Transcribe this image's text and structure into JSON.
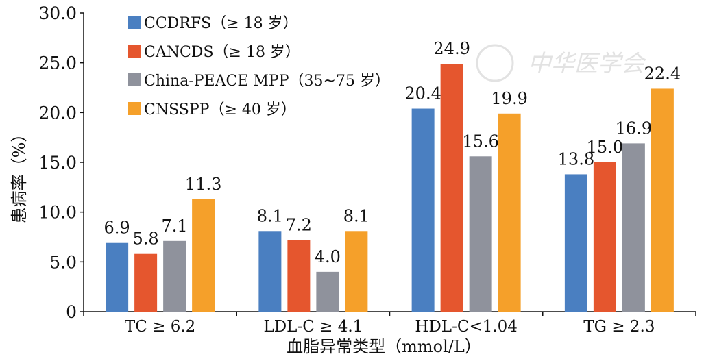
{
  "chart_data": {
    "type": "bar",
    "categories": [
      "TC ≥ 6.2",
      "LDL-C ≥ 4.1",
      "HDL-C<1.04",
      "TG ≥ 2.3"
    ],
    "series": [
      {
        "name": "CCDRFS（≥ 18 岁）",
        "color": "#4a7fc1",
        "values": [
          6.9,
          8.1,
          20.4,
          13.8
        ]
      },
      {
        "name": "CANCDS（≥ 18 岁）",
        "color": "#e5562e",
        "values": [
          5.8,
          7.2,
          24.9,
          15.0
        ]
      },
      {
        "name": "China-PEACE MPP（35~75 岁）",
        "color": "#8f929c",
        "values": [
          7.1,
          4.0,
          15.6,
          16.9
        ]
      },
      {
        "name": "CNSSPP（≥ 40 岁）",
        "color": "#f5a02a",
        "values": [
          11.3,
          8.1,
          19.9,
          22.4
        ]
      }
    ],
    "xlabel": "血脂异常类型（mmol/L）",
    "ylabel": "患病率（%）",
    "ylim": [
      0,
      30
    ],
    "yticks": [
      "0",
      "5.0",
      "10.0",
      "15.0",
      "20.0",
      "25.0",
      "30.0"
    ],
    "legend_position": "top-left",
    "grid": false
  },
  "watermark": "中华医学会"
}
